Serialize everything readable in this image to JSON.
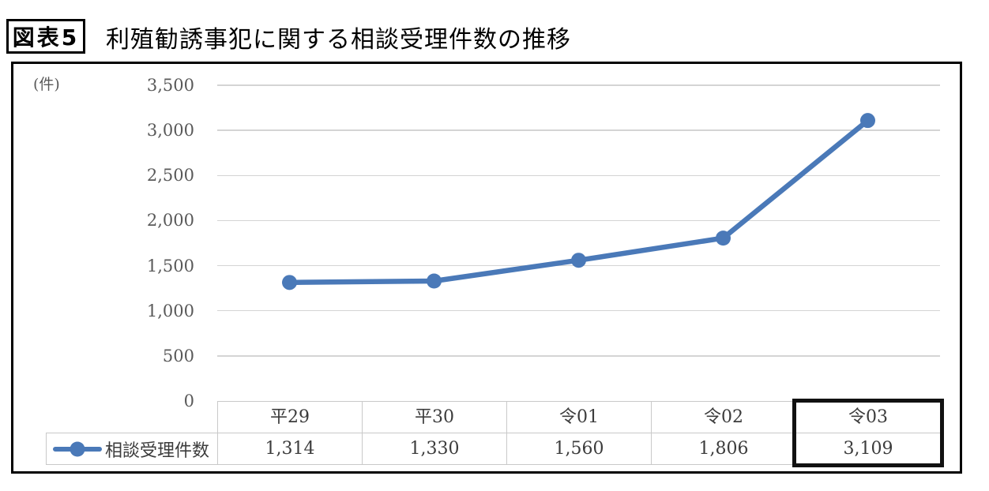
{
  "figure": {
    "badge": "図表5",
    "title": "利殖勧誘事犯に関する相談受理件数の推移"
  },
  "chart_data": {
    "type": "line",
    "title": "利殖勧誘事犯に関する相談受理件数の推移",
    "unit_label": "(件)",
    "categories": [
      "平29",
      "平30",
      "令01",
      "令02",
      "令03"
    ],
    "series": [
      {
        "name": "相談受理件数",
        "values": [
          1314,
          1330,
          1560,
          1806,
          3109
        ],
        "value_labels": [
          "1,314",
          "1,330",
          "1,560",
          "1,806",
          "3,109"
        ]
      }
    ],
    "xlabel": "",
    "ylabel": "(件)",
    "ylim": [
      0,
      3500
    ],
    "ytick_step": 500,
    "yticks": [
      {
        "value": 0,
        "label": "0"
      },
      {
        "value": 500,
        "label": "500"
      },
      {
        "value": 1000,
        "label": "1,000"
      },
      {
        "value": 1500,
        "label": "1,500"
      },
      {
        "value": 2000,
        "label": "2,000"
      },
      {
        "value": 2500,
        "label": "2,500"
      },
      {
        "value": 3000,
        "label": "3,000"
      },
      {
        "value": 3500,
        "label": "3,500"
      }
    ],
    "grid": true,
    "legend_position": "table-row-left",
    "highlight_category": "令03",
    "highlight_index": 4,
    "colors": {
      "line": "#4A79B8",
      "grid": "#D4D4D4",
      "table_border": "#C9C9C9",
      "table_text": "#3C3C3C",
      "axis_text": "#595959",
      "highlight_border": "#111111"
    }
  }
}
